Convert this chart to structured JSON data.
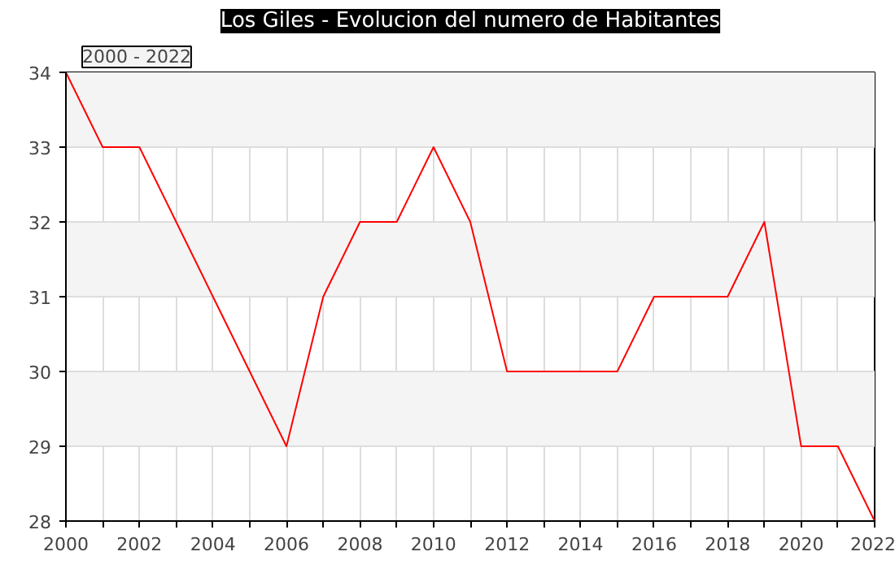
{
  "chart_data": {
    "type": "line",
    "title": "Los Giles - Evolucion del numero de Habitantes",
    "subtitle": "2000 - 2022",
    "x": [
      2000,
      2001,
      2002,
      2003,
      2004,
      2005,
      2006,
      2007,
      2008,
      2009,
      2010,
      2011,
      2012,
      2013,
      2014,
      2015,
      2016,
      2017,
      2018,
      2019,
      2020,
      2021,
      2022
    ],
    "series": [
      {
        "color": "#ff0000",
        "values": [
          34,
          33,
          33,
          32,
          31,
          30,
          29,
          31,
          32,
          32,
          33,
          32,
          30,
          30,
          30,
          30,
          31,
          31,
          31,
          32,
          29,
          29,
          28
        ]
      }
    ],
    "xlim": [
      2000,
      2022
    ],
    "xticks": [
      2000,
      {
        "value": 2001,
        "label": null
      },
      2002,
      {
        "value": 2003,
        "label": null
      },
      2004,
      {
        "value": 2005,
        "label": null
      },
      2006,
      {
        "value": 2007,
        "label": null
      },
      2008,
      {
        "value": 2009,
        "label": null
      },
      2010,
      {
        "value": 2011,
        "label": null
      },
      2012,
      {
        "value": 2013,
        "label": null
      },
      2014,
      {
        "value": 2015,
        "label": null
      },
      2016,
      {
        "value": 2017,
        "label": null
      },
      2018,
      {
        "value": 2019,
        "label": null
      },
      2020,
      {
        "value": 2021,
        "label": null
      },
      2022
    ],
    "ylim": [
      28,
      34
    ],
    "yticks": [
      28,
      29,
      30,
      31,
      32,
      33,
      34
    ],
    "grid": true,
    "marker": "none",
    "line_style": "solid"
  }
}
